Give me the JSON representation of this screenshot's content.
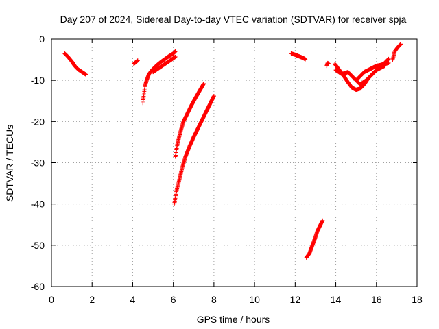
{
  "chart_data": {
    "type": "scatter",
    "title": "Day 207 of 2024, Sidereal Day-to-day VTEC variation (SDTVAR) for receiver spja",
    "xlabel": "GPS time / hours",
    "ylabel": "SDTVAR / TECUs",
    "xlim": [
      0,
      18
    ],
    "ylim": [
      -60,
      0
    ],
    "xticks": [
      0,
      2,
      4,
      6,
      8,
      10,
      12,
      14,
      16,
      18
    ],
    "yticks": [
      0,
      -10,
      -20,
      -30,
      -40,
      -50,
      -60
    ],
    "xtick_labels": [
      "0",
      "2",
      "4",
      "6",
      "8",
      "10",
      "12",
      "14",
      "16",
      "18"
    ],
    "ytick_labels": [
      "0",
      "-10",
      "-20",
      "-30",
      "-40",
      "-50",
      "-60"
    ],
    "grid": true,
    "marker": "+",
    "color": "#ff0000",
    "segments": [
      {
        "x": [
          0.65,
          0.8,
          1.0,
          1.15,
          1.3,
          1.45,
          1.6,
          1.7
        ],
        "y": [
          -3.5,
          -4.2,
          -5.4,
          -6.5,
          -7.3,
          -7.8,
          -8.3,
          -8.6
        ]
      },
      {
        "x": [
          4.05,
          4.15,
          4.25
        ],
        "y": [
          -6.0,
          -5.6,
          -5.2
        ]
      },
      {
        "x": [
          4.5,
          4.55,
          4.6,
          4.7,
          4.8,
          4.95,
          5.15,
          5.4,
          5.6,
          5.8,
          6.0,
          6.1
        ],
        "y": [
          -15.5,
          -13.5,
          -11.5,
          -9.8,
          -8.5,
          -7.5,
          -6.5,
          -5.5,
          -4.8,
          -4.1,
          -3.5,
          -3.0
        ]
      },
      {
        "x": [
          5.0,
          5.3,
          5.6,
          5.9,
          6.1
        ],
        "y": [
          -8.0,
          -7.0,
          -6.0,
          -5.0,
          -4.3
        ]
      },
      {
        "x": [
          6.1,
          6.2,
          6.35,
          6.5,
          6.7,
          6.9,
          7.1,
          7.3,
          7.5
        ],
        "y": [
          -28.5,
          -25.5,
          -22.5,
          -20.0,
          -18.0,
          -16.0,
          -14.2,
          -12.5,
          -10.8
        ]
      },
      {
        "x": [
          6.05,
          6.15,
          6.3,
          6.45,
          6.6,
          6.8,
          7.0,
          7.2,
          7.4,
          7.6,
          7.8,
          8.0
        ],
        "y": [
          -40.0,
          -37.0,
          -34.0,
          -31.0,
          -28.5,
          -26.0,
          -23.8,
          -21.8,
          -19.8,
          -17.8,
          -15.8,
          -13.8
        ]
      },
      {
        "x": [
          11.8,
          12.0,
          12.2,
          12.4,
          12.5
        ],
        "y": [
          -3.5,
          -3.8,
          -4.2,
          -4.6,
          -4.9
        ]
      },
      {
        "x": [
          12.55,
          12.7,
          12.85,
          13.0,
          13.1,
          13.25,
          13.35
        ],
        "y": [
          -53.0,
          -52.0,
          -50.0,
          -48.0,
          -46.5,
          -45.0,
          -44.0
        ]
      },
      {
        "x": [
          13.55,
          13.6,
          13.65
        ],
        "y": [
          -6.5,
          -5.8,
          -6.0
        ]
      },
      {
        "x": [
          13.95,
          14.1,
          14.25,
          14.4,
          14.6,
          14.8,
          15.0,
          15.2,
          15.4,
          15.6,
          15.8,
          16.0,
          16.2,
          16.4,
          16.6
        ],
        "y": [
          -6.0,
          -7.0,
          -8.0,
          -9.0,
          -10.5,
          -11.8,
          -12.3,
          -12.0,
          -11.0,
          -9.5,
          -8.5,
          -7.5,
          -6.8,
          -5.8,
          -4.8
        ]
      },
      {
        "x": [
          14.0,
          14.3,
          14.6,
          14.9,
          15.2,
          15.5,
          15.8,
          16.0,
          16.4
        ],
        "y": [
          -7.5,
          -8.5,
          -8.0,
          -9.5,
          -11.0,
          -10.0,
          -8.5,
          -7.5,
          -6.5
        ]
      },
      {
        "x": [
          15.0,
          15.2,
          15.4,
          15.6,
          15.8,
          16.0,
          16.2,
          16.4,
          16.6
        ],
        "y": [
          -10.0,
          -9.0,
          -8.0,
          -7.5,
          -7.0,
          -6.5,
          -6.3,
          -6.0,
          -5.8
        ]
      },
      {
        "x": [
          16.8,
          16.9,
          17.05,
          17.2
        ],
        "y": [
          -5.0,
          -3.0,
          -2.0,
          -1.2
        ]
      }
    ]
  }
}
